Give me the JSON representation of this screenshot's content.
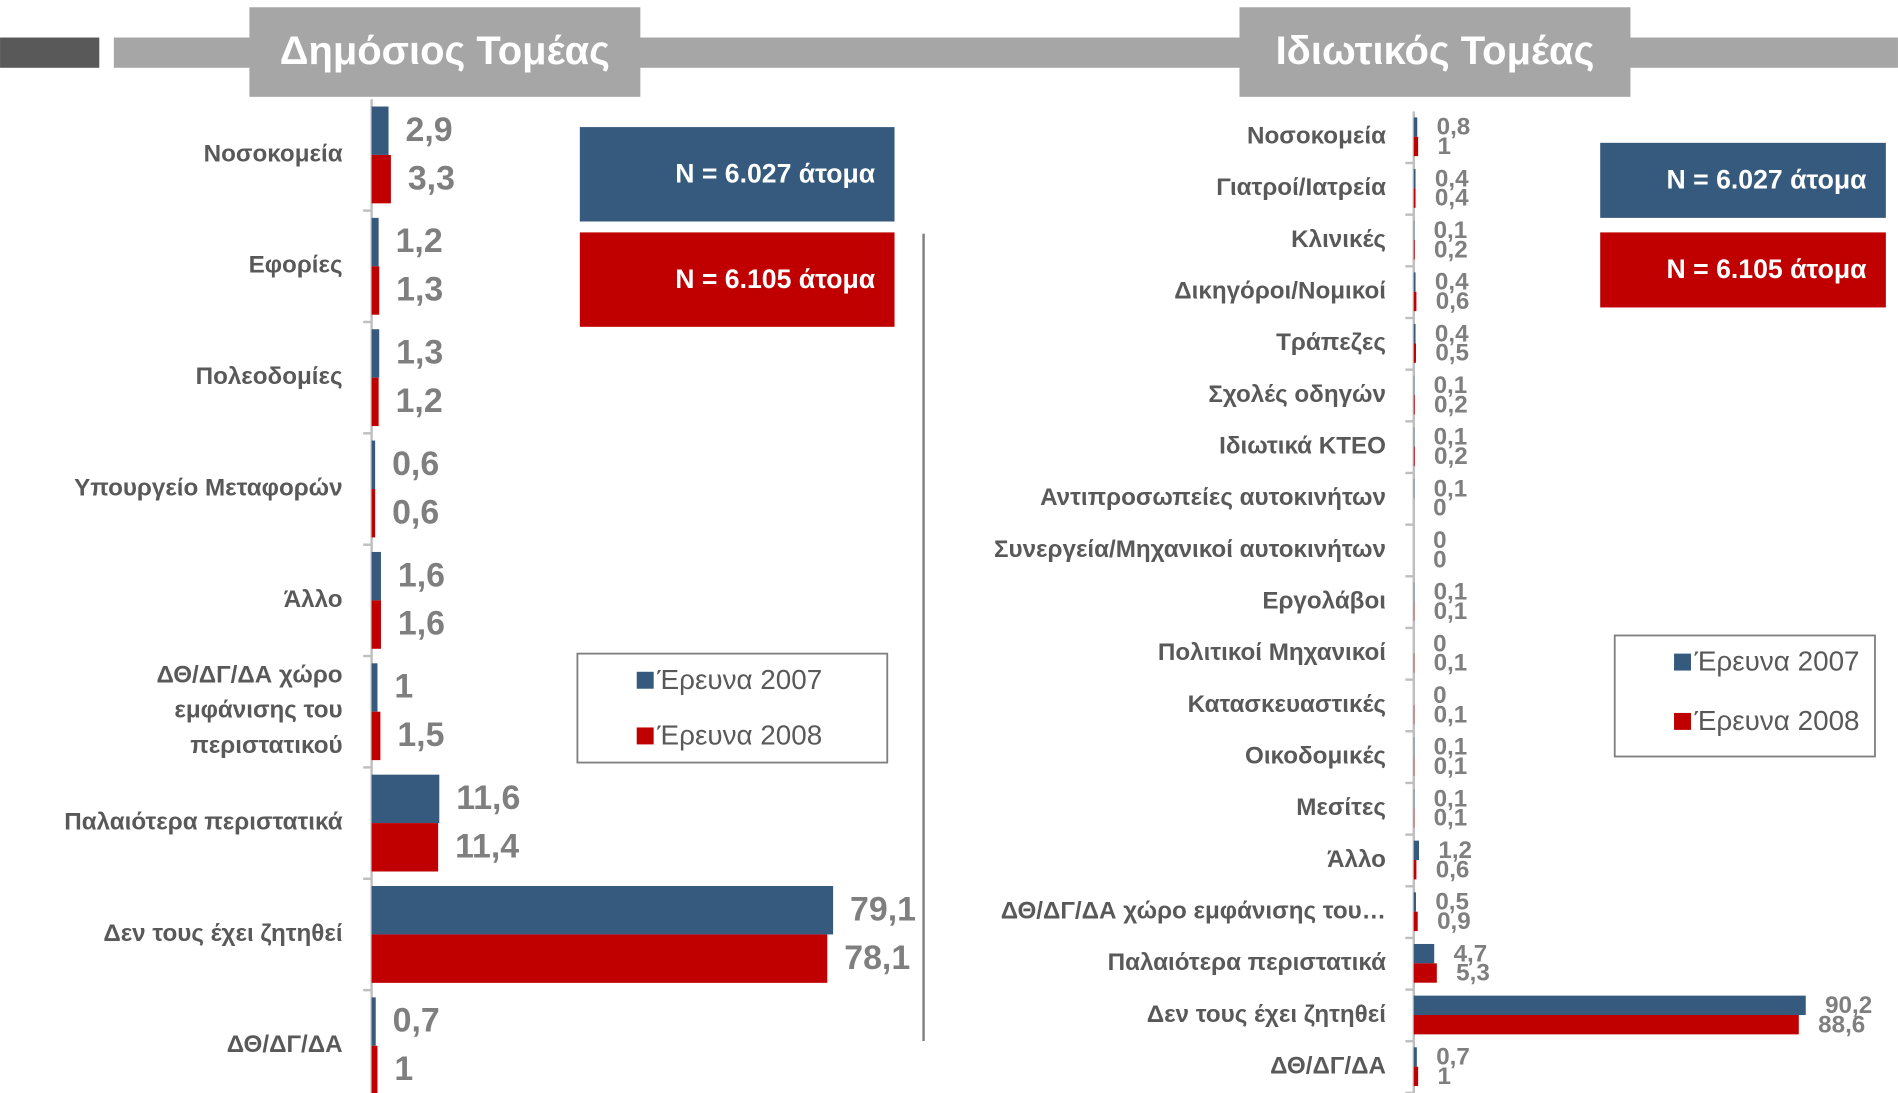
{
  "chart_data": [
    {
      "type": "bar",
      "orientation": "horizontal",
      "title": "Δημόσιος Τομέας",
      "categories": [
        "Νοσοκομεία",
        "Εφορίες",
        "Πολεοδομίες",
        "Υπουργείο Μεταφορών",
        "Άλλο",
        "ΔΘ/ΔΓ/ΔΑ χώρο εμφάνισης του περιστατικού",
        "Παλαιότερα περιστατικά",
        "Δεν τους έχει ζητηθεί",
        "ΔΘ/ΔΓ/ΔΑ"
      ],
      "series": [
        {
          "name": "Έρευνα 2007",
          "color": "#355a7d",
          "values": [
            2.9,
            1.2,
            1.3,
            0.6,
            1.6,
            1,
            11.6,
            79.1,
            0.7
          ],
          "value_labels": [
            "2,9",
            "1,2",
            "1,3",
            "0,6",
            "1,6",
            "1",
            "11,6",
            "79,1",
            "0,7"
          ]
        },
        {
          "name": "Έρευνα 2008",
          "color": "#c00000",
          "values": [
            3.3,
            1.3,
            1.2,
            0.6,
            1.6,
            1.5,
            11.4,
            78.1,
            1
          ],
          "value_labels": [
            "3,3",
            "1,3",
            "1,2",
            "0,6",
            "1,6",
            "1,5",
            "11,4",
            "78,1",
            "1"
          ]
        }
      ],
      "xlim": [
        0,
        100
      ],
      "annotations": [
        "N = 6.027 άτομα",
        "N = 6.105 άτομα"
      ]
    },
    {
      "type": "bar",
      "orientation": "horizontal",
      "title": "Ιδιωτικός Τομέας",
      "categories": [
        "Νοσοκομεία",
        "Γιατροί/Ιατρεία",
        "Κλινικές",
        "Δικηγόροι/Νομικοί",
        "Τράπεζες",
        "Σχολές οδηγών",
        "Ιδιωτικά ΚΤΕΟ",
        "Αντιπροσωπείες αυτοκινήτων",
        "Συνεργεία/Μηχανικοί αυτοκινήτων",
        "Εργολάβοι",
        "Πολιτικοί Μηχανικοί",
        "Κατασκευαστικές",
        "Οικοδομικές",
        "Μεσίτες",
        "Άλλο",
        "ΔΘ/ΔΓ/ΔΑ χώρο εμφάνισης του…",
        "Παλαιότερα περιστατικά",
        "Δεν τους έχει ζητηθεί",
        "ΔΘ/ΔΓ/ΔΑ"
      ],
      "series": [
        {
          "name": "Έρευνα 2007",
          "color": "#355a7d",
          "values": [
            0.8,
            0.4,
            0.1,
            0.4,
            0.4,
            0.1,
            0.1,
            0.1,
            0,
            0.1,
            0,
            0,
            0.1,
            0.1,
            1.2,
            0.5,
            4.7,
            90.2,
            0.7
          ],
          "value_labels": [
            "0,8",
            "0,4",
            "0,1",
            "0,4",
            "0,4",
            "0,1",
            "0,1",
            "0,1",
            "0",
            "0,1",
            "0",
            "0",
            "0,1",
            "0,1",
            "1,2",
            "0,5",
            "4,7",
            "90,2",
            "0,7"
          ]
        },
        {
          "name": "Έρευνα 2008",
          "color": "#c00000",
          "values": [
            1,
            0.4,
            0.2,
            0.6,
            0.5,
            0.2,
            0.2,
            0,
            0,
            0.1,
            0.1,
            0.1,
            0.1,
            0.1,
            0.6,
            0.9,
            5.3,
            88.6,
            1
          ],
          "value_labels": [
            "1",
            "0,4",
            "0,2",
            "0,6",
            "0,5",
            "0,2",
            "0,2",
            "0",
            "0",
            "0,1",
            "0,1",
            "0,1",
            "0,1",
            "0,1",
            "0,6",
            "0,9",
            "5,3",
            "88,6",
            "1"
          ]
        }
      ],
      "xlim": [
        0,
        100
      ],
      "annotations": [
        "N = 6.027 άτομα",
        "N = 6.105 άτομα"
      ]
    }
  ]
}
